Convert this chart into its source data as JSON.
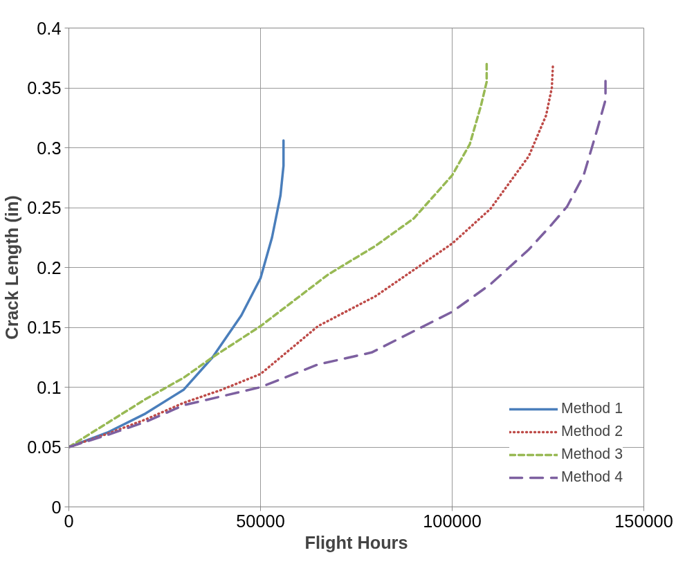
{
  "chart_data": {
    "type": "line",
    "xlabel": "Flight Hours",
    "ylabel": "Crack Length (in)",
    "xlim": [
      0,
      150000
    ],
    "ylim": [
      0,
      0.4
    ],
    "xticks": [
      0,
      50000,
      100000,
      150000
    ],
    "yticks": [
      0,
      0.05,
      0.1,
      0.15,
      0.2,
      0.25,
      0.3,
      0.35,
      0.4
    ],
    "grid": true,
    "legend": "bottom right",
    "marker": "none",
    "series": [
      {
        "name": "Method 1",
        "color": "#4a7ebb",
        "line_style": "solid",
        "x": [
          0,
          10000,
          20000,
          30000,
          37500,
          45000,
          50000,
          53000,
          55200,
          56000,
          56000
        ],
        "values": [
          0.05,
          0.062,
          0.078,
          0.098,
          0.125,
          0.16,
          0.191,
          0.225,
          0.26,
          0.285,
          0.306
        ]
      },
      {
        "name": "Method 2",
        "color": "#be4b48",
        "line_style": "dotted",
        "x": [
          0,
          10000,
          20000,
          30000,
          40000,
          50000,
          65000,
          80000,
          90000,
          100000,
          110000,
          120000,
          124500,
          126000,
          126300
        ],
        "values": [
          0.05,
          0.061,
          0.073,
          0.087,
          0.098,
          0.111,
          0.151,
          0.176,
          0.198,
          0.22,
          0.249,
          0.293,
          0.327,
          0.35,
          0.37
        ]
      },
      {
        "name": "Method 3",
        "color": "#98b954",
        "line_style": "dashed",
        "x": [
          0,
          10000,
          20000,
          30000,
          37500,
          50000,
          67600,
          80000,
          90000,
          100000,
          104600,
          107500,
          109000,
          109000
        ],
        "values": [
          0.05,
          0.07,
          0.09,
          0.108,
          0.125,
          0.151,
          0.194,
          0.218,
          0.241,
          0.277,
          0.303,
          0.335,
          0.355,
          0.37
        ]
      },
      {
        "name": "Method 4",
        "color": "#7d60a0",
        "line_style": "longdash",
        "x": [
          0,
          10000,
          20000,
          30000,
          50000,
          65000,
          79000,
          100000,
          110000,
          120000,
          126000,
          130000,
          134300,
          138000,
          140000,
          140000
        ],
        "values": [
          0.05,
          0.06,
          0.071,
          0.085,
          0.1,
          0.119,
          0.129,
          0.163,
          0.186,
          0.215,
          0.236,
          0.251,
          0.277,
          0.317,
          0.34,
          0.358
        ]
      }
    ]
  }
}
